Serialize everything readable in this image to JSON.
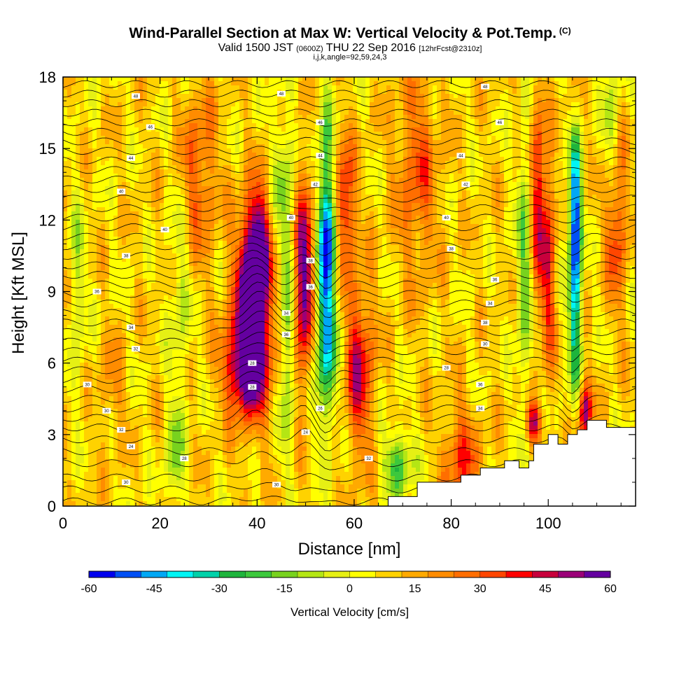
{
  "header": {
    "title": "Wind-Parallel Section at Max W: Vertical Velocity & Pot.Temp.",
    "title_mark": "(C)",
    "valid_prefix": "Valid 1500 JST",
    "valid_utc": "(0600Z)",
    "valid_date": "THU 22 Sep 2016",
    "forecast": "[12hrFcst@2310z]",
    "indices": "i,j,k,angle=92,59,24,3"
  },
  "colors": {
    "palette": [
      "#0000ee",
      "#0050f5",
      "#00a8f5",
      "#00f5f5",
      "#00d2aa",
      "#1eb43c",
      "#3cc83c",
      "#78d21e",
      "#b4e614",
      "#e6f014",
      "#ffff00",
      "#ffd200",
      "#ffaa00",
      "#ff8c00",
      "#ff6e00",
      "#ff4600",
      "#ff0000",
      "#c8003c",
      "#9b0078",
      "#6400a0"
    ]
  },
  "chart_data": {
    "type": "heatmap",
    "xlabel": "Distance [nm]",
    "ylabel": "Height [Kft MSL]",
    "xlim": [
      0,
      118
    ],
    "ylim": [
      0,
      18
    ],
    "xticks": [
      "0",
      "20",
      "40",
      "60",
      "80",
      "100"
    ],
    "xtick_values": [
      0,
      20,
      40,
      60,
      80,
      100
    ],
    "yticks": [
      "0",
      "3",
      "6",
      "9",
      "12",
      "15",
      "18"
    ],
    "ytick_values": [
      0,
      3,
      6,
      9,
      12,
      15,
      18
    ],
    "colorbar": {
      "label": "Vertical Velocity [cm/s]",
      "min": -60,
      "max": 60,
      "step": 6,
      "ticks": [
        "-60",
        "-45",
        "-30",
        "-15",
        "0",
        "15",
        "30",
        "45",
        "60"
      ],
      "tick_values": [
        -60,
        -45,
        -30,
        -15,
        0,
        15,
        30,
        45,
        60
      ]
    },
    "field_features": [
      {
        "x": 39,
        "y": 8.0,
        "amp": 66,
        "sx": 2.6,
        "sy": 2.6
      },
      {
        "x": 40,
        "y": 11.0,
        "amp": 40,
        "sx": 1.6,
        "sy": 1.6
      },
      {
        "x": 37,
        "y": 5.8,
        "amp": 35,
        "sx": 3.0,
        "sy": 1.2
      },
      {
        "x": 50,
        "y": 9.5,
        "amp": 50,
        "sx": 1.6,
        "sy": 3.0
      },
      {
        "x": 58,
        "y": 12.5,
        "amp": 38,
        "sx": 1.4,
        "sy": 2.0
      },
      {
        "x": 61,
        "y": 5.8,
        "amp": 36,
        "sx": 2.0,
        "sy": 2.5
      },
      {
        "x": 54,
        "y": 7.5,
        "amp": -50,
        "sx": 1.8,
        "sy": 2.8
      },
      {
        "x": 54.5,
        "y": 11.5,
        "amp": -42,
        "sx": 1.4,
        "sy": 1.6
      },
      {
        "x": 54,
        "y": 15.0,
        "amp": -22,
        "sx": 1.4,
        "sy": 2.0
      },
      {
        "x": 46,
        "y": 7.0,
        "amp": -26,
        "sx": 1.0,
        "sy": 3.5
      },
      {
        "x": 45.5,
        "y": 14.0,
        "amp": -18,
        "sx": 1.5,
        "sy": 2.2
      },
      {
        "x": 69,
        "y": 1.8,
        "amp": -32,
        "sx": 2.0,
        "sy": 1.0
      },
      {
        "x": 105.5,
        "y": 10.5,
        "amp": -55,
        "sx": 0.9,
        "sy": 2.2
      },
      {
        "x": 105.5,
        "y": 13.5,
        "amp": -35,
        "sx": 0.9,
        "sy": 1.6
      },
      {
        "x": 105.5,
        "y": 6.5,
        "amp": -25,
        "sx": 1.0,
        "sy": 2.0
      },
      {
        "x": 98,
        "y": 13.0,
        "amp": 35,
        "sx": 1.0,
        "sy": 3.0
      },
      {
        "x": 100,
        "y": 10.0,
        "amp": 30,
        "sx": 1.0,
        "sy": 3.0
      },
      {
        "x": 107.5,
        "y": 4.0,
        "amp": 45,
        "sx": 1.0,
        "sy": 0.9
      },
      {
        "x": 97,
        "y": 3.5,
        "amp": 40,
        "sx": 1.2,
        "sy": 0.6
      },
      {
        "x": 95,
        "y": 10.0,
        "amp": -22,
        "sx": 1.2,
        "sy": 4.0
      },
      {
        "x": 28,
        "y": 14.0,
        "amp": 22,
        "sx": 2.5,
        "sy": 2.5
      },
      {
        "x": 24,
        "y": 8.5,
        "amp": -15,
        "sx": 1.5,
        "sy": 3.0
      },
      {
        "x": 23,
        "y": 2.0,
        "amp": -22,
        "sx": 1.2,
        "sy": 1.5
      },
      {
        "x": 10,
        "y": 5.0,
        "amp": 12,
        "sx": 2.0,
        "sy": 1.5
      },
      {
        "x": 73,
        "y": 14.0,
        "amp": 22,
        "sx": 3.0,
        "sy": 3.0
      },
      {
        "x": 82,
        "y": 2.0,
        "amp": 26,
        "sx": 2.5,
        "sy": 1.5
      },
      {
        "x": 114,
        "y": 12.0,
        "amp": 28,
        "sx": 1.5,
        "sy": 2.5
      },
      {
        "x": 113,
        "y": 16.0,
        "amp": -20,
        "sx": 1.2,
        "sy": 2.0
      },
      {
        "x": 3,
        "y": 9.0,
        "amp": -15,
        "sx": 1.2,
        "sy": 3.0
      }
    ],
    "terrain": [
      [
        0,
        0
      ],
      [
        67,
        0
      ],
      [
        67,
        0.4
      ],
      [
        73,
        0.4
      ],
      [
        73,
        1.0
      ],
      [
        82,
        1.0
      ],
      [
        82,
        1.3
      ],
      [
        86,
        1.3
      ],
      [
        86,
        1.6
      ],
      [
        91,
        1.6
      ],
      [
        91,
        1.9
      ],
      [
        94,
        1.9
      ],
      [
        94,
        1.6
      ],
      [
        96,
        1.6
      ],
      [
        96,
        1.9
      ],
      [
        97,
        1.9
      ],
      [
        97,
        2.6
      ],
      [
        100,
        2.6
      ],
      [
        100,
        3.0
      ],
      [
        102,
        3.0
      ],
      [
        102,
        2.6
      ],
      [
        104,
        2.6
      ],
      [
        104,
        3.0
      ],
      [
        106,
        3.0
      ],
      [
        106,
        3.2
      ],
      [
        108,
        3.2
      ],
      [
        108,
        3.6
      ],
      [
        112,
        3.6
      ],
      [
        112,
        3.3
      ],
      [
        118,
        3.3
      ],
      [
        118,
        0
      ]
    ],
    "theta_contours": {
      "base_y": [
        0.2,
        0.7,
        1.2,
        1.8,
        2.3,
        2.8,
        3.3,
        3.7,
        4.1,
        4.5,
        4.9,
        5.3,
        5.7,
        6.1,
        6.5,
        6.9,
        7.3,
        7.7,
        8.1,
        8.5,
        8.9,
        9.3,
        9.7,
        10.1,
        10.5,
        10.9,
        11.3,
        11.7,
        12.1,
        12.5,
        12.9,
        13.3,
        13.7,
        14.1,
        14.5,
        14.9,
        15.3,
        15.7,
        16.1,
        16.5,
        16.9,
        17.3,
        17.7
      ],
      "labels": [
        {
          "text": "30",
          "x": 13,
          "y": 1.0
        },
        {
          "text": "30",
          "x": 44,
          "y": 0.9
        },
        {
          "text": "28",
          "x": 25,
          "y": 2.0
        },
        {
          "text": "32",
          "x": 63,
          "y": 2.0
        },
        {
          "text": "24",
          "x": 14,
          "y": 2.5
        },
        {
          "text": "32",
          "x": 12,
          "y": 3.2
        },
        {
          "text": "24",
          "x": 50,
          "y": 3.1
        },
        {
          "text": "30",
          "x": 9,
          "y": 4.0
        },
        {
          "text": "26",
          "x": 53,
          "y": 4.1
        },
        {
          "text": "34",
          "x": 86,
          "y": 4.1
        },
        {
          "text": "30",
          "x": 5,
          "y": 5.1
        },
        {
          "text": "28",
          "x": 39,
          "y": 5.0
        },
        {
          "text": "36",
          "x": 86,
          "y": 5.1
        },
        {
          "text": "28",
          "x": 39,
          "y": 6.0
        },
        {
          "text": "28",
          "x": 79,
          "y": 5.8
        },
        {
          "text": "32",
          "x": 15,
          "y": 6.6
        },
        {
          "text": "36",
          "x": 46,
          "y": 7.2
        },
        {
          "text": "30",
          "x": 87,
          "y": 6.8
        },
        {
          "text": "34",
          "x": 14,
          "y": 7.5
        },
        {
          "text": "38",
          "x": 87,
          "y": 7.7
        },
        {
          "text": "34",
          "x": 46,
          "y": 8.1
        },
        {
          "text": "34",
          "x": 88,
          "y": 8.5
        },
        {
          "text": "36",
          "x": 7,
          "y": 9.0
        },
        {
          "text": "36",
          "x": 51,
          "y": 9.2
        },
        {
          "text": "36",
          "x": 89,
          "y": 9.5
        },
        {
          "text": "38",
          "x": 13,
          "y": 10.5
        },
        {
          "text": "38",
          "x": 51,
          "y": 10.3
        },
        {
          "text": "38",
          "x": 80,
          "y": 10.8
        },
        {
          "text": "40",
          "x": 21,
          "y": 11.6
        },
        {
          "text": "40",
          "x": 47,
          "y": 12.1
        },
        {
          "text": "40",
          "x": 79,
          "y": 12.1
        },
        {
          "text": "40",
          "x": 12,
          "y": 13.2
        },
        {
          "text": "42",
          "x": 52,
          "y": 13.5
        },
        {
          "text": "42",
          "x": 83,
          "y": 13.5
        },
        {
          "text": "44",
          "x": 14,
          "y": 14.6
        },
        {
          "text": "44",
          "x": 53,
          "y": 14.7
        },
        {
          "text": "44",
          "x": 82,
          "y": 14.7
        },
        {
          "text": "46",
          "x": 18,
          "y": 15.9
        },
        {
          "text": "46",
          "x": 53,
          "y": 16.1
        },
        {
          "text": "46",
          "x": 90,
          "y": 16.1
        },
        {
          "text": "48",
          "x": 15,
          "y": 17.2
        },
        {
          "text": "48",
          "x": 45,
          "y": 17.3
        },
        {
          "text": "48",
          "x": 87,
          "y": 17.6
        }
      ]
    }
  }
}
